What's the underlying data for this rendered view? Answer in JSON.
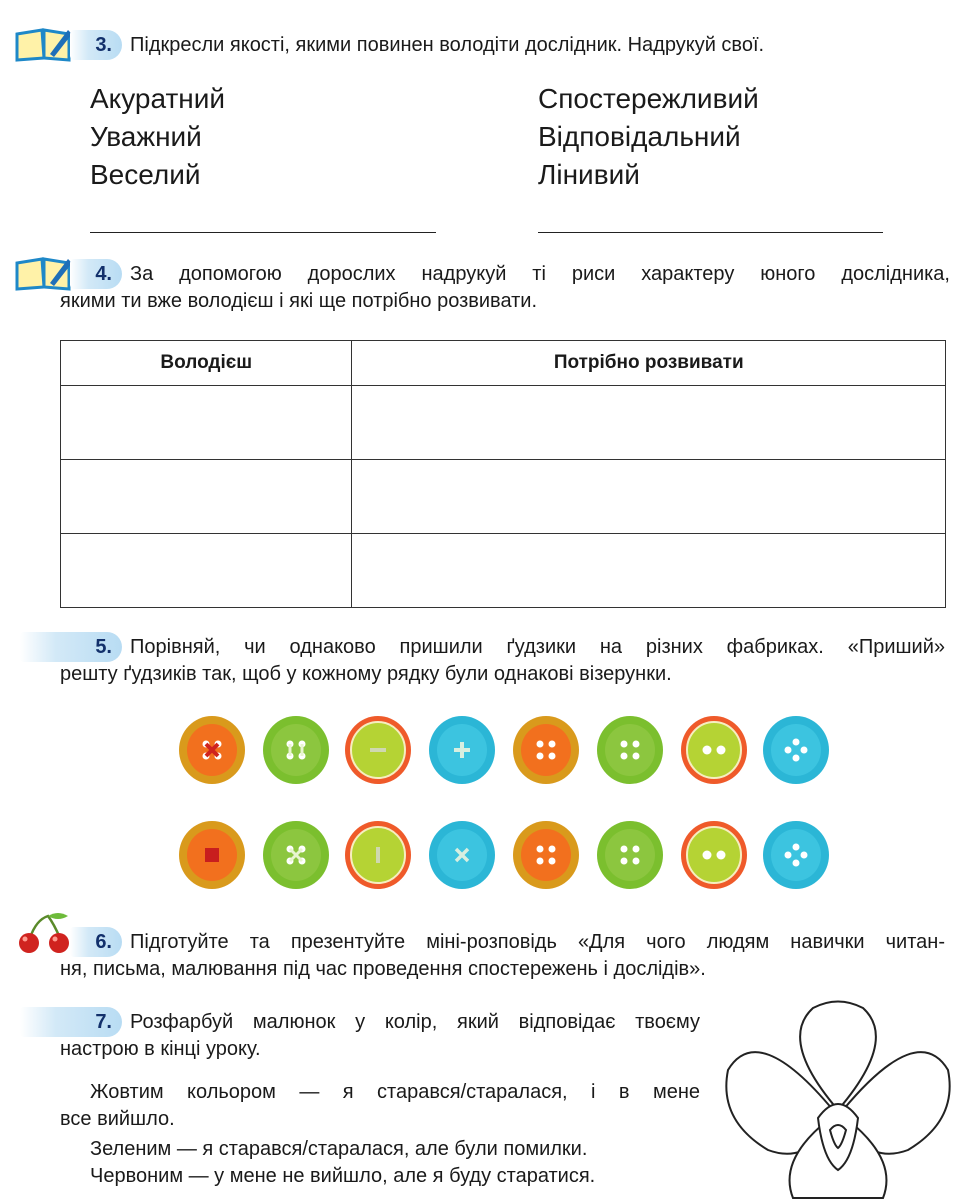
{
  "task3": {
    "number": "3.",
    "text": "Підкресли якості, якими повинен володіти дослідник. Надрукуй свої.",
    "left_words": [
      "Акуратний",
      "Уважний",
      "Веселий"
    ],
    "right_words": [
      "Спостережливий",
      "Відповідальний",
      "Лінивий"
    ]
  },
  "task4": {
    "number": "4.",
    "text_line1": "За допомогою дорослих надрукуй ті риси характеру юного дослідника,",
    "text_line2": "якими ти вже володієш і які ще потрібно розвивати.",
    "table_headers": [
      "Володієш",
      "Потрібно розвивати"
    ],
    "rows": 3
  },
  "task5": {
    "number": "5.",
    "text_line1": "Порівняй, чи однаково пришили ґудзики на різних фабриках. «Приший»",
    "text_line2": "решту ґудзиків так, щоб у кожному рядку були однакові візерунки.",
    "button_rows": [
      [
        {
          "color": "orange",
          "holes": "cross-red"
        },
        {
          "color": "green",
          "holes": "two-vertical-threads"
        },
        {
          "color": "lime-ring",
          "holes": "horizontal-thread"
        },
        {
          "color": "cyan",
          "holes": "cross-thread"
        },
        {
          "color": "orange",
          "holes": "four"
        },
        {
          "color": "green",
          "holes": "four"
        },
        {
          "color": "lime-ring",
          "holes": "two"
        },
        {
          "color": "cyan",
          "holes": "four-diamond"
        }
      ],
      [
        {
          "color": "orange",
          "holes": "square-red"
        },
        {
          "color": "green",
          "holes": "x-thread"
        },
        {
          "color": "lime-ring",
          "holes": "vertical-thread"
        },
        {
          "color": "cyan",
          "holes": "diagonal-thread"
        },
        {
          "color": "orange",
          "holes": "four"
        },
        {
          "color": "green",
          "holes": "four"
        },
        {
          "color": "lime-ring",
          "holes": "two"
        },
        {
          "color": "cyan",
          "holes": "four-diamond"
        }
      ]
    ]
  },
  "task6": {
    "number": "6.",
    "text_line1": "Підготуйте та презентуйте міні-розповідь «Для чого людям навички читан-",
    "text_line2": "ня, письма, малювання під час проведення спостережень і дослідів»."
  },
  "task7": {
    "number": "7.",
    "text_line1": "Розфарбуй малюнок у колір, який відповідає твоєму",
    "text_line2": "настрою в кінці уроку.",
    "p1_line1": "Жовтим кольором — я старався/старалася, і в мене",
    "p1_line2": "все вийшло.",
    "p2": "Зеленим — я старався/старалася, але були помилки.",
    "p3": "Червоним — у мене не вийшло, але я буду старатися."
  },
  "colors": {
    "badge_text": "#12306b",
    "orange": "#f2701e",
    "green": "#8cc63f",
    "lime": "#b5d334",
    "cyan": "#2bb6d6",
    "ring": "#ef5a2a"
  }
}
